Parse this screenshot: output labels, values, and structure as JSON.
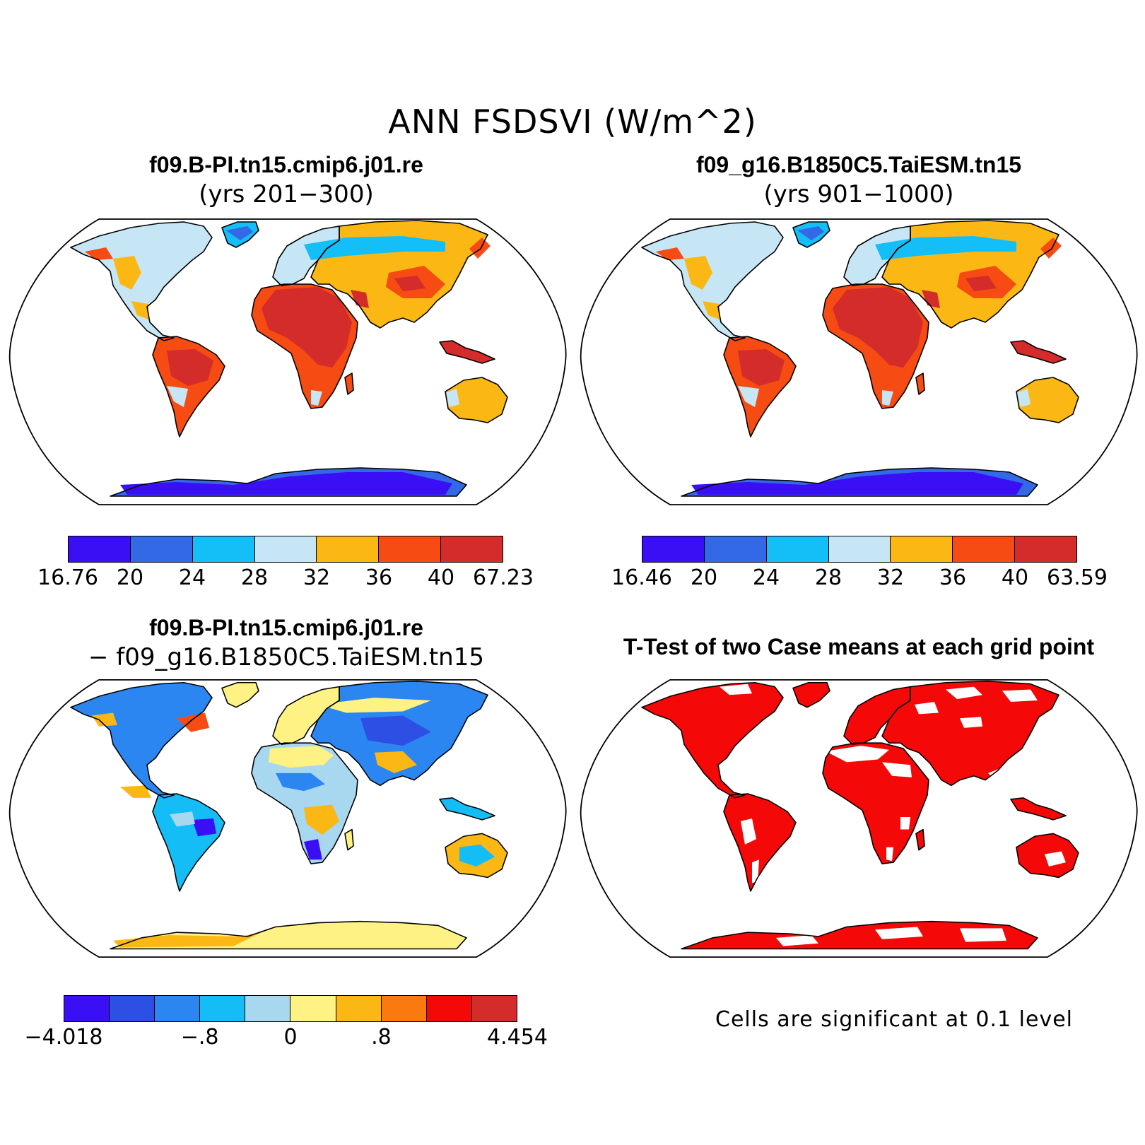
{
  "figure": {
    "title": "ANN FSDSVI (W/m^2)"
  },
  "panels": [
    {
      "id": "case1",
      "title": "f09.B-PI.tn15.cmip6.j01.re",
      "subtitle": "(yrs 201−300)",
      "map_style": "warm",
      "colorbar": {
        "colors": [
          "#3b0ff5",
          "#3368e6",
          "#14bef7",
          "#c6e6f6",
          "#fbb714",
          "#f64b12",
          "#d42b2b"
        ],
        "labels": [
          "16.76",
          "20",
          "24",
          "28",
          "32",
          "36",
          "40",
          "67.23"
        ]
      }
    },
    {
      "id": "case2",
      "title": "f09_g16.B1850C5.TaiESM.tn15",
      "subtitle": "(yrs 901−1000)",
      "map_style": "warm",
      "colorbar": {
        "colors": [
          "#3b0ff5",
          "#3368e6",
          "#14bef7",
          "#c6e6f6",
          "#fbb714",
          "#f64b12",
          "#d42b2b"
        ],
        "labels": [
          "16.46",
          "20",
          "24",
          "28",
          "32",
          "36",
          "40",
          "63.59"
        ]
      }
    },
    {
      "id": "diff",
      "title": "f09.B-PI.tn15.cmip6.j01.re",
      "subtitle": "− f09_g16.B1850C5.TaiESM.tn15",
      "map_style": "diff",
      "colorbar": {
        "colors": [
          "#3b0ff5",
          "#2d4fe3",
          "#2c86f2",
          "#15bdf7",
          "#a8d7f0",
          "#fdf283",
          "#fbb714",
          "#fb7a0f",
          "#f50808",
          "#d42b2b"
        ],
        "labels": [
          "−4.018",
          "",
          "",
          "−.8",
          "",
          "0",
          "",
          ".8",
          "",
          "",
          "4.454"
        ]
      }
    },
    {
      "id": "ttest",
      "title": "T-Test of two Case means at each grid point",
      "subtitle": "",
      "map_style": "ttest",
      "note": "Cells are significant at 0.1 level"
    }
  ]
}
